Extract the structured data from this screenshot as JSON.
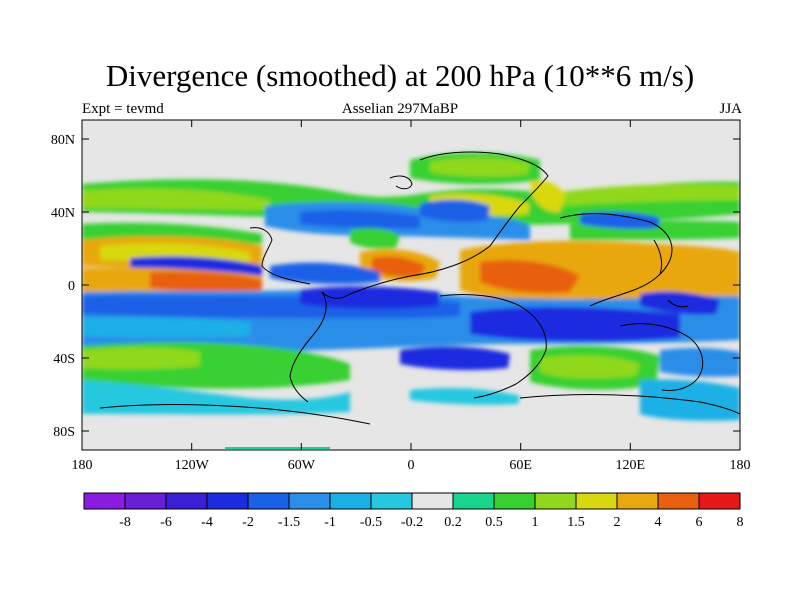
{
  "title": "Divergence (smoothed) at 200 hPa (10**6 m/s)",
  "subtitle_left": "Expt = tevmd",
  "subtitle_center": "Asselian 297MaBP",
  "subtitle_right": "JJA",
  "lat_labels": [
    "80N",
    "40N",
    "0",
    "40S",
    "80S"
  ],
  "lon_labels": [
    "180",
    "120W",
    "60W",
    "0",
    "60E",
    "120E",
    "180"
  ],
  "colorbar": {
    "labels": [
      "-8",
      "-6",
      "-4",
      "-2",
      "-1.5",
      "-1",
      "-0.5",
      "-0.2",
      "0.2",
      "0.5",
      "1",
      "1.5",
      "2",
      "4",
      "6",
      "8"
    ],
    "colors": [
      "#8a1be0",
      "#6a1ed8",
      "#3a1fd6",
      "#1a2be0",
      "#1a60e8",
      "#2a8ee8",
      "#1ab0e6",
      "#26c8e0",
      "#e6e6e6",
      "#18d48c",
      "#38d030",
      "#90d81c",
      "#d8d810",
      "#e8a810",
      "#e86010",
      "#e81818"
    ]
  }
}
